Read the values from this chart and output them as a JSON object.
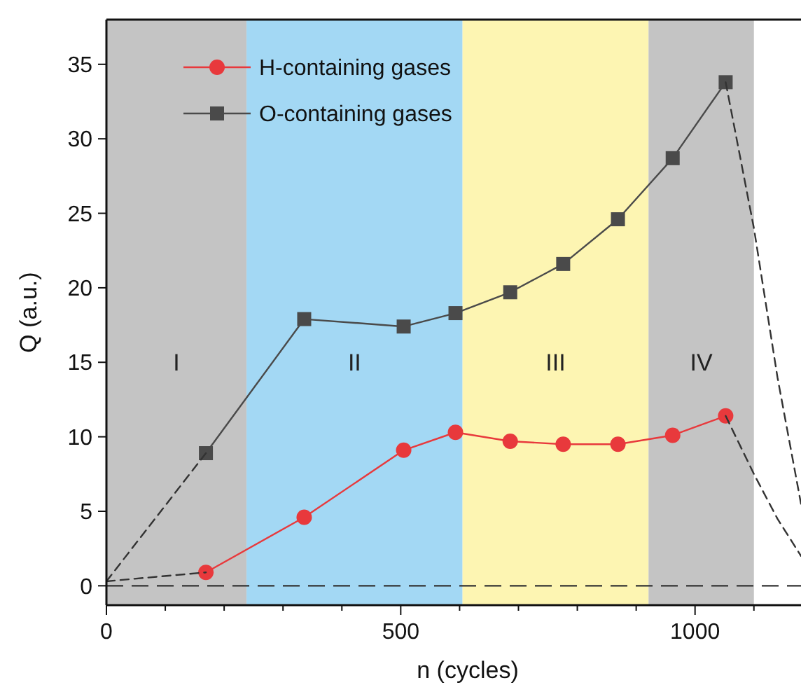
{
  "chart_data": {
    "type": "line",
    "xlabel": "n (cycles)",
    "ylabel": "Q (a.u.)",
    "xlim": [
      0,
      1180
    ],
    "ylim": [
      -1.3,
      38
    ],
    "xticks": [
      0,
      {
        "value": 100,
        "label": null
      },
      {
        "value": 200,
        "label": null
      },
      {
        "value": 300,
        "label": null
      },
      {
        "value": 400,
        "label": null
      },
      500,
      {
        "value": 600,
        "label": null
      },
      {
        "value": 700,
        "label": null
      },
      {
        "value": 800,
        "label": null
      },
      {
        "value": 900,
        "label": null
      },
      1000,
      {
        "value": 1100,
        "label": null
      }
    ],
    "yticks": [
      0,
      5,
      10,
      15,
      20,
      25,
      30,
      35
    ],
    "legend": "top left",
    "grid": false,
    "bands": [
      {
        "axis": "x",
        "from": 0,
        "to": 238,
        "label": "I",
        "color": "#c4c4c4"
      },
      {
        "axis": "x",
        "from": 238,
        "to": 605,
        "label": "II",
        "color": "#a3d8f4"
      },
      {
        "axis": "x",
        "from": 605,
        "to": 921,
        "label": "III",
        "color": "#fdf5b2"
      },
      {
        "axis": "x",
        "from": 921,
        "to": 1100,
        "label": "IV",
        "color": "#c4c4c4"
      }
    ],
    "ref_lines": [
      {
        "axis": "y",
        "value": 0,
        "color": "#333333",
        "line_style": "dashed"
      }
    ],
    "series": [
      {
        "name": "H-containing gases",
        "color": "#e8393c",
        "marker": "circle",
        "line_style": "solid",
        "x": [
          169,
          336,
          505,
          593,
          686,
          776,
          869,
          962,
          1052
        ],
        "values": [
          0.9,
          4.6,
          9.1,
          10.3,
          9.7,
          9.5,
          9.5,
          10.1,
          11.4
        ]
      },
      {
        "name": "O-containing gases",
        "color": "#4a4a4a",
        "marker": "square",
        "line_style": "solid",
        "x": [
          169,
          336,
          505,
          593,
          686,
          776,
          869,
          962,
          1052
        ],
        "values": [
          8.9,
          17.9,
          17.4,
          18.3,
          19.7,
          21.6,
          24.6,
          28.7,
          33.8
        ]
      },
      {
        "color": "#333333",
        "marker": "none",
        "line_style": "dashed",
        "x": [
          0,
          169
        ],
        "values": [
          0.3,
          0.9
        ]
      },
      {
        "color": "#333333",
        "marker": "none",
        "line_style": "dashed",
        "x": [
          0,
          169
        ],
        "values": [
          0.3,
          8.9
        ]
      },
      {
        "color": "#333333",
        "marker": "none",
        "line_style": "dashed",
        "x": [
          1052,
          1100,
          1140,
          1180
        ],
        "values": [
          11.4,
          7.5,
          4.5,
          2.0
        ]
      },
      {
        "color": "#333333",
        "marker": "none",
        "line_style": "dashed",
        "x": [
          1052,
          1100,
          1140,
          1180
        ],
        "values": [
          33.8,
          24,
          14,
          5.5
        ]
      }
    ]
  }
}
